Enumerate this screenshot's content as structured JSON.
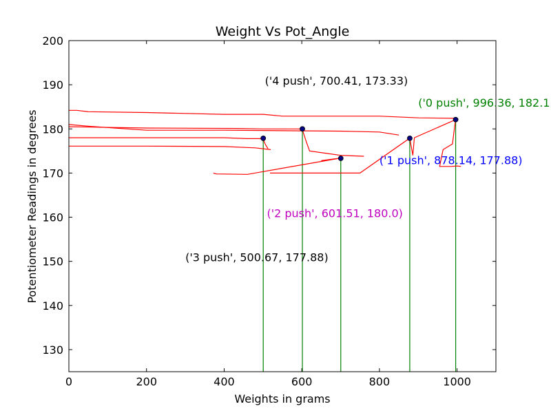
{
  "chart_data": {
    "type": "line",
    "title": "Weight Vs Pot_Angle",
    "xlabel": "Weights in grams",
    "ylabel": "Potentiometer Readings in degrees",
    "xlim": [
      0,
      1100
    ],
    "ylim": [
      125,
      200
    ],
    "xticks": [
      "0",
      "200",
      "400",
      "600",
      "800",
      "1000"
    ],
    "yticks": [
      "130",
      "140",
      "150",
      "160",
      "170",
      "180",
      "190",
      "200"
    ],
    "grid": false,
    "colors": {
      "trace": "#ff0000",
      "stems": "#008000",
      "markers": "#000080"
    },
    "points": [
      {
        "x": 996.36,
        "y": 182.1
      },
      {
        "x": 878.14,
        "y": 177.88
      },
      {
        "x": 700.41,
        "y": 173.33
      },
      {
        "x": 601.51,
        "y": 180.0
      },
      {
        "x": 500.67,
        "y": 177.88
      }
    ],
    "annotations": [
      {
        "text": "('0 push', 996.36, 182.1",
        "x": 900,
        "y": 185,
        "color": "#008000"
      },
      {
        "text": "('1 push', 878.14, 177.88)",
        "x": 800,
        "y": 172,
        "color": "#0000ff"
      },
      {
        "text": "('2 push', 601.51, 180.0)",
        "x": 510,
        "y": 160,
        "color": "#bf00bf"
      },
      {
        "text": "('3 push', 500.67, 177.88)",
        "x": 300,
        "y": 150,
        "color": "#000000"
      },
      {
        "text": "('4 push', 700.41, 173.33)",
        "x": 505,
        "y": 190,
        "color": "#000000"
      }
    ],
    "traces": [
      [
        [
          0,
          184.2
        ],
        [
          20,
          184.2
        ],
        [
          50,
          183.9
        ],
        [
          200,
          183.7
        ],
        [
          400,
          183.3
        ],
        [
          500,
          183.3
        ],
        [
          550,
          182.9
        ],
        [
          800,
          182.9
        ],
        [
          900,
          182.5
        ],
        [
          996,
          182.4
        ]
      ],
      [
        [
          0,
          181.0
        ],
        [
          50,
          180.6
        ],
        [
          200,
          179.7
        ],
        [
          400,
          179.7
        ],
        [
          700,
          179.5
        ],
        [
          800,
          179.3
        ],
        [
          850,
          178.6
        ]
      ],
      [
        [
          0,
          180.5
        ],
        [
          200,
          180.2
        ],
        [
          430,
          180.1
        ],
        [
          498,
          180.0
        ],
        [
          601,
          180.0
        ],
        [
          612,
          177
        ],
        [
          620,
          175
        ],
        [
          660,
          174.5
        ],
        [
          700,
          174
        ],
        [
          760,
          173.8
        ]
      ],
      [
        [
          0,
          178.0
        ],
        [
          200,
          178.0
        ],
        [
          400,
          178.0
        ],
        [
          460,
          177.8
        ],
        [
          500,
          177.8
        ],
        [
          506,
          176.5
        ],
        [
          513,
          175.5
        ]
      ],
      [
        [
          0,
          176.1
        ],
        [
          200,
          176.1
        ],
        [
          400,
          176.0
        ],
        [
          480,
          175.7
        ],
        [
          520,
          175.3
        ]
      ],
      [
        [
          372,
          170.0
        ],
        [
          380,
          169.8
        ],
        [
          460,
          169.7
        ],
        [
          700,
          173.4
        ],
        [
          650,
          172.8
        ]
      ],
      [
        [
          518,
          170.0
        ],
        [
          750,
          170.0
        ],
        [
          878,
          177.9
        ],
        [
          886,
          174
        ],
        [
          890,
          178
        ],
        [
          996,
          182.1
        ],
        [
          988,
          176.6
        ],
        [
          964,
          175.3
        ],
        [
          955,
          171.5
        ],
        [
          985,
          171.5
        ],
        [
          1000,
          171.6
        ],
        [
          1010,
          171.5
        ]
      ]
    ]
  }
}
